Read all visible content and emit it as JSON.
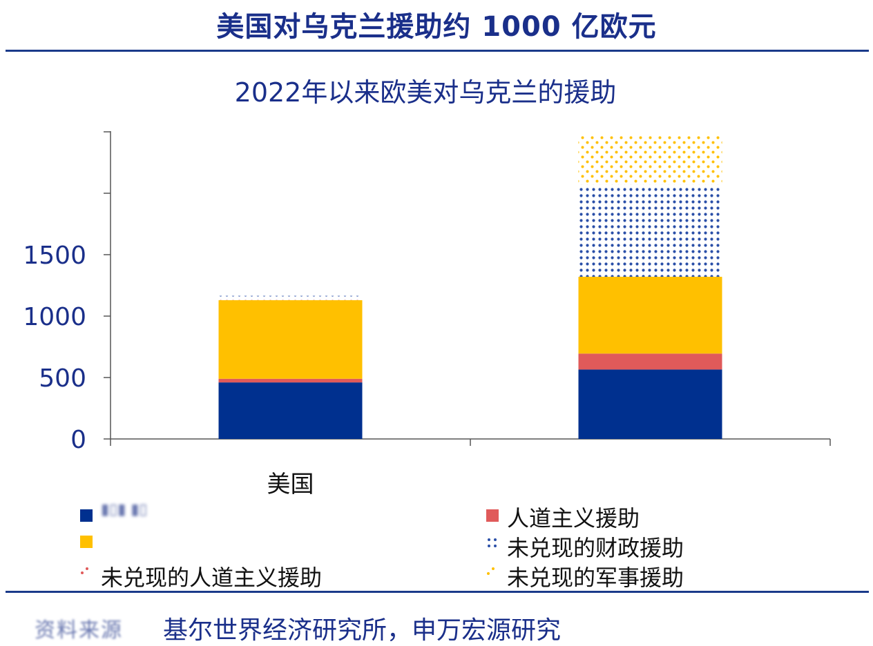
{
  "header": {
    "title": "美国对乌克兰援助约 1000 亿欧元"
  },
  "chart_data": {
    "type": "bar",
    "stacked": true,
    "title": "2022年以来欧美对乌克兰的援助",
    "categories": [
      "美国",
      ""
    ],
    "ylim": [
      0,
      2500
    ],
    "yticks": [
      0,
      500,
      1000,
      1500
    ],
    "grid": false,
    "legend_position": "bottom",
    "series": [
      {
        "name": "",
        "color": "#00308f",
        "pattern": "solid",
        "values": [
          460,
          565
        ]
      },
      {
        "name": "人道主义援助",
        "color": "#e05a5a",
        "pattern": "solid",
        "values": [
          30,
          130
        ]
      },
      {
        "name": "",
        "color": "#ffc000",
        "pattern": "solid",
        "values": [
          640,
          625
        ]
      },
      {
        "name": "未兑现的人道主义援助",
        "color": "#e05a5a",
        "pattern": "dots",
        "values": [
          10,
          0
        ]
      },
      {
        "name": "未兑现的财政援助",
        "color": "#00308f",
        "pattern": "dots",
        "values": [
          25,
          750
        ]
      },
      {
        "name": "未兑现的军事援助",
        "color": "#ffc000",
        "pattern": "dots",
        "values": [
          0,
          400
        ]
      }
    ]
  },
  "footer": {
    "source": "基尔世界经济研究所，申万宏源研究",
    "source_label_blurred": "资料来源"
  }
}
